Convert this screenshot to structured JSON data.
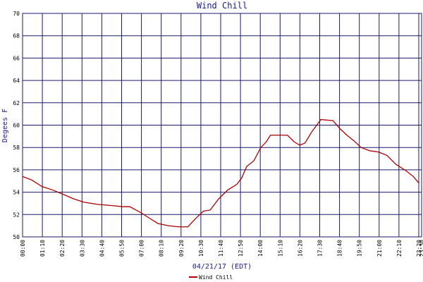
{
  "chart_data": {
    "type": "line",
    "title": "Wind Chill",
    "x_label": "04/21/17 (EDT)",
    "y_label": "Degees F",
    "x": [
      0,
      32,
      69,
      106,
      144,
      181,
      218,
      267,
      317,
      354,
      379,
      416,
      453,
      478,
      515,
      552,
      584,
      614,
      639,
      663,
      693,
      725,
      757,
      775,
      792,
      817,
      842,
      861,
      876,
      936,
      960,
      980,
      998,
      1022,
      1054,
      1097,
      1121,
      1146,
      1171,
      1196,
      1228,
      1257,
      1287,
      1319,
      1356,
      1381,
      1401
    ],
    "series": [
      {
        "name": "Wind Chill",
        "color": "#aa0000",
        "values": [
          55.4,
          55.1,
          54.5,
          54.2,
          53.8,
          53.4,
          53.1,
          52.9,
          52.8,
          52.7,
          52.7,
          52.2,
          51.6,
          51.2,
          51.0,
          50.9,
          50.9,
          51.7,
          52.3,
          52.4,
          53.4,
          54.2,
          54.7,
          55.3,
          56.3,
          56.8,
          58.0,
          58.5,
          59.1,
          59.1,
          58.5,
          58.2,
          58.4,
          59.4,
          60.5,
          60.4,
          59.7,
          59.1,
          58.6,
          58.0,
          57.7,
          57.6,
          57.3,
          56.5,
          55.9,
          55.4,
          54.8
        ]
      }
    ],
    "xlim": [
      0,
      1410
    ],
    "xticks": [
      {
        "value": 0,
        "label": "00:00"
      },
      {
        "value": 70,
        "label": "01:10"
      },
      {
        "value": 140,
        "label": "02:20"
      },
      {
        "value": 210,
        "label": "03:30"
      },
      {
        "value": 280,
        "label": "04:40"
      },
      {
        "value": 350,
        "label": "05:50"
      },
      {
        "value": 420,
        "label": "07:00"
      },
      {
        "value": 490,
        "label": "08:10"
      },
      {
        "value": 560,
        "label": "09:20"
      },
      {
        "value": 630,
        "label": "10:30"
      },
      {
        "value": 700,
        "label": "11:40"
      },
      {
        "value": 770,
        "label": "12:50"
      },
      {
        "value": 840,
        "label": "14:00"
      },
      {
        "value": 910,
        "label": "15:10"
      },
      {
        "value": 980,
        "label": "16:20"
      },
      {
        "value": 1050,
        "label": "17:30"
      },
      {
        "value": 1120,
        "label": "18:40"
      },
      {
        "value": 1190,
        "label": "19:50"
      },
      {
        "value": 1260,
        "label": "21:00"
      },
      {
        "value": 1330,
        "label": "22:10"
      },
      {
        "value": 1400,
        "label": "23:20"
      },
      {
        "value": 1410,
        "label": "23:30"
      }
    ],
    "ylim": [
      50,
      70
    ],
    "yticks": [
      50,
      52,
      54,
      56,
      58,
      60,
      62,
      64,
      66,
      68,
      70
    ],
    "grid": true,
    "legend": "bottom"
  }
}
